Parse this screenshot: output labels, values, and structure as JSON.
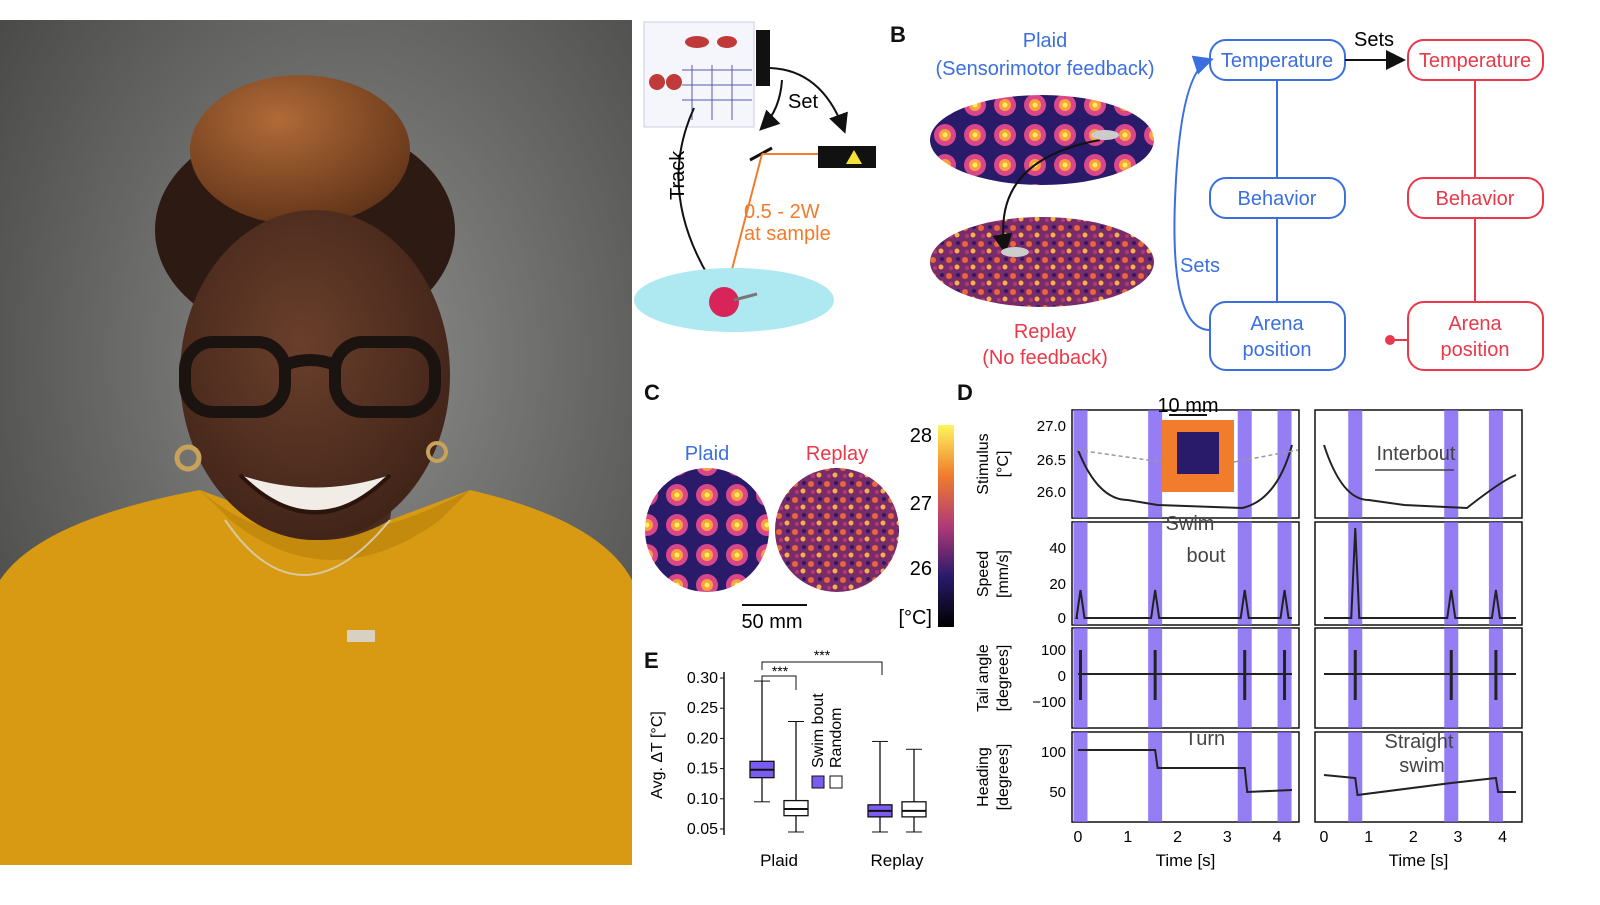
{
  "panels": {
    "B": "B",
    "C": "C",
    "D": "D",
    "E": "E"
  },
  "colors": {
    "blue": "#3b6fe0",
    "red": "#e8384a",
    "orange": "#f07c2c",
    "purple": "#7b5cf0",
    "cyan": "#aee8f0"
  },
  "panelA": {
    "set": "Set",
    "track": "Track",
    "power": "0.5 - 2W",
    "power2": "at sample"
  },
  "panelB": {
    "plaid": "Plaid",
    "plaid_sub": "(Sensorimotor feedback)",
    "replay": "Replay",
    "replay_sub": "(No feedback)",
    "sets_top": "Sets",
    "sets_left": "Sets",
    "blue_nodes": [
      "Temperature",
      "Behavior",
      "Arena",
      "position"
    ],
    "red_nodes": [
      "Temperature",
      "Behavior",
      "Arena",
      "position"
    ]
  },
  "panelC": {
    "plaid": "Plaid",
    "replay": "Replay",
    "scale": "50 mm",
    "colorbar_ticks": [
      "28",
      "27",
      "26"
    ],
    "unit": "[°C]"
  },
  "panelD": {
    "scale": "10 mm",
    "ylabels": [
      [
        "Stimulus",
        "[°C]"
      ],
      [
        "Speed",
        "[mm/s]"
      ],
      [
        "Tail angle",
        "[degrees]"
      ],
      [
        "Heading",
        "[degrees]"
      ]
    ],
    "yticks": {
      "stimulus": [
        "27.0",
        "26.5",
        "26.0"
      ],
      "speed": [
        "40",
        "20",
        "0"
      ],
      "tail": [
        "100",
        "0",
        "−100"
      ],
      "heading": [
        "100",
        "50"
      ]
    },
    "annotations": {
      "interbout": "Interbout",
      "swim": "Swim",
      "bout": "bout",
      "turn": "Turn",
      "straight": "Straight",
      "swim2": "swim"
    },
    "xticks": [
      "0",
      "1",
      "2",
      "3",
      "4"
    ],
    "xlabel": "Time [s]"
  },
  "chart_data": {
    "type": "box",
    "title": "",
    "ylabel": "Avg. ΔT [°C]",
    "categories": [
      "Plaid",
      "Replay"
    ],
    "ylim": [
      0.04,
      0.31
    ],
    "yticks": [
      "0.30",
      "0.25",
      "0.20",
      "0.15",
      "0.10",
      "0.05"
    ],
    "series": [
      {
        "name": "Swim bout",
        "color": "#7b5cf0",
        "boxes": [
          {
            "min": 0.095,
            "q1": 0.135,
            "median": 0.148,
            "q3": 0.162,
            "max": 0.295
          },
          {
            "min": 0.045,
            "q1": 0.07,
            "median": 0.08,
            "q3": 0.09,
            "max": 0.195
          }
        ]
      },
      {
        "name": "Random",
        "color": "#ffffff",
        "boxes": [
          {
            "min": 0.045,
            "q1": 0.072,
            "median": 0.083,
            "q3": 0.097,
            "max": 0.228
          },
          {
            "min": 0.045,
            "q1": 0.07,
            "median": 0.08,
            "q3": 0.095,
            "max": 0.182
          }
        ]
      }
    ],
    "significance": [
      "***",
      "***"
    ]
  }
}
